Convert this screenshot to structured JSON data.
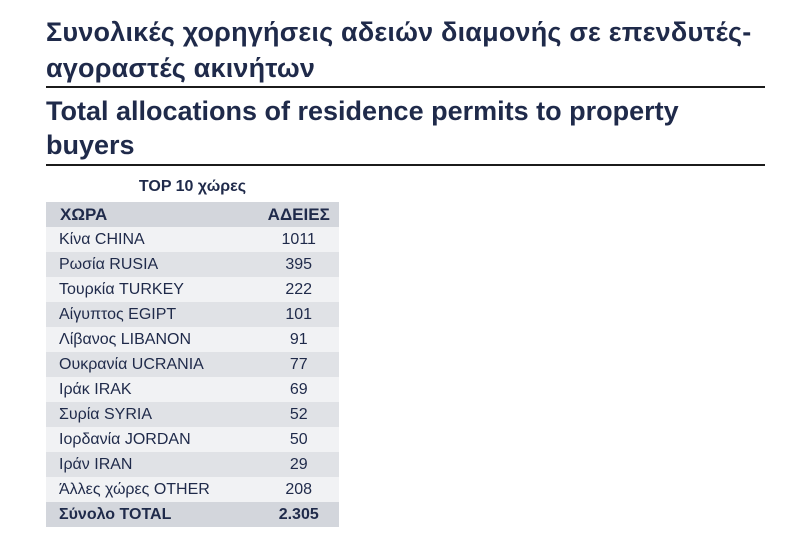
{
  "title_greek": "Συνολικές χορηγήσεις αδειών διαμονής σε επενδυτές-αγοραστές ακινήτων",
  "title_english": "Total allocations of residence permits to property buyers",
  "table": {
    "caption": "TOP 10 χώρες",
    "headers": {
      "country": "ΧΩΡΑ",
      "permits": "ΑΔΕΙΕΣ"
    },
    "rows": [
      {
        "country": "Κίνα CHINA",
        "permits": "1011"
      },
      {
        "country": "Ρωσία RUSIA",
        "permits": "395"
      },
      {
        "country": "Τουρκία TURKEY",
        "permits": "222"
      },
      {
        "country": "Αίγυπτος EGIPT",
        "permits": "101"
      },
      {
        "country": "Λίβανος LIBANON",
        "permits": "91"
      },
      {
        "country": "Ουκρανία UCRANIA",
        "permits": "77"
      },
      {
        "country": "Ιράκ IRAK",
        "permits": "69"
      },
      {
        "country": "Συρία SYRIA",
        "permits": "52"
      },
      {
        "country": "Ιορδανία JORDAN",
        "permits": "50"
      },
      {
        "country": "Ιράν IRAN",
        "permits": "29"
      },
      {
        "country": "Άλλες χώρες OTHER",
        "permits": "208"
      }
    ],
    "total": {
      "country": "Σύνολο TOTAL",
      "permits": "2.305"
    }
  }
}
